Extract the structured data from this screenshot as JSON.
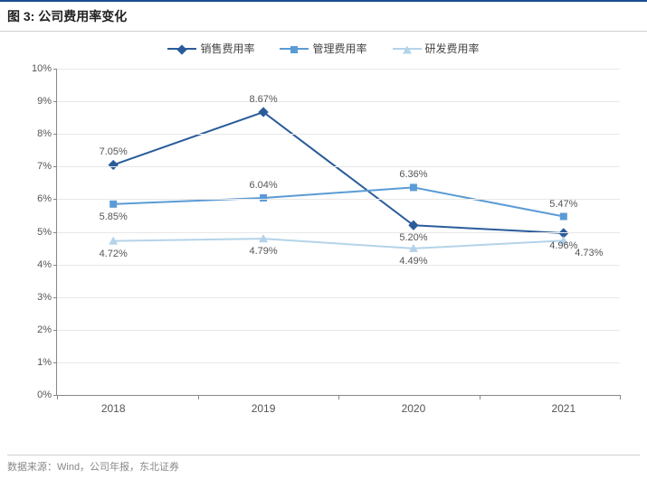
{
  "title": "图 3: 公司费用率变化",
  "source": "数据来源：Wind，公司年报，东北证券",
  "chart": {
    "type": "line",
    "categories": [
      "2018",
      "2019",
      "2020",
      "2021"
    ],
    "ylim": [
      0,
      10
    ],
    "ytick_step": 1,
    "y_suffix": "%",
    "background_color": "#ffffff",
    "grid_color": "#e8e8e8",
    "axis_color": "#888888",
    "label_fontsize": 11,
    "series": [
      {
        "name": "销售费用率",
        "values": [
          7.05,
          8.67,
          5.2,
          4.96
        ],
        "color": "#2a5c9a",
        "marker": "diamond",
        "line_width": 2,
        "label_offsets": [
          "above",
          "above",
          "below",
          "below"
        ]
      },
      {
        "name": "管理费用率",
        "values": [
          5.85,
          6.04,
          6.36,
          5.47
        ],
        "color": "#5b9bd5",
        "marker": "square",
        "line_width": 2,
        "label_offsets": [
          "below",
          "above",
          "above",
          "above"
        ]
      },
      {
        "name": "研发费用率",
        "values": [
          4.72,
          4.79,
          4.49,
          4.73
        ],
        "color": "#b4d3ea",
        "marker": "triangle",
        "line_width": 2,
        "label_offsets": [
          "below",
          "below",
          "below",
          "below-right"
        ]
      }
    ]
  }
}
